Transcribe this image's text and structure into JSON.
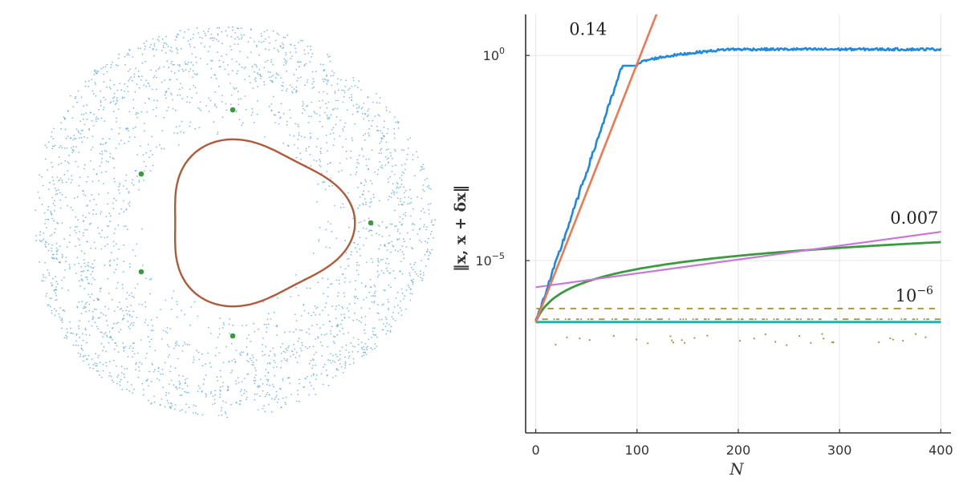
{
  "colors": {
    "scatter": "#5aa8e0",
    "chaotic": "#1e88e5",
    "fit_fast": "#f07850",
    "regular": "#3a9a40",
    "fit_slow": "#c878d8",
    "periodic": "#a89440",
    "fixed": "#20b2b0",
    "closed_orbit": "#b05a3a",
    "axis": "#333333",
    "grid": "#e6e6e6"
  },
  "chart_data": [
    {
      "type": "scatter",
      "title": "",
      "series": [
        {
          "kind": "chaotic-sea",
          "count": 2600,
          "radius_range": [
            0.42,
            1.0
          ]
        },
        {
          "kind": "closed-orbit"
        },
        {
          "kind": "periodic-points",
          "count": 5
        }
      ]
    },
    {
      "type": "line",
      "title": "",
      "xlabel": "N",
      "ylabel": "‖x, x + δx‖",
      "xlim": [
        -10,
        410
      ],
      "xticks": [
        0,
        100,
        200,
        300,
        400
      ],
      "yscale": "log",
      "ylim_exp": [
        -9.2,
        1.0
      ],
      "yticks": [
        {
          "base": "10",
          "exp": "0",
          "value": 0
        },
        {
          "base": "10",
          "exp": "−5",
          "value": -5
        }
      ],
      "grid": true,
      "annotations": [
        {
          "text": "0.14",
          "x": 33,
          "y_exp": 0.5,
          "kind": "plain"
        },
        {
          "text": "0.007",
          "x": 350,
          "y_exp": -4.1,
          "kind": "plain"
        },
        {
          "text": "10",
          "sup": "−6",
          "x": 355,
          "y_exp": -6.0,
          "kind": "power"
        }
      ],
      "series": [
        {
          "name": "",
          "role": "chaotic",
          "start_exp": -6.5,
          "slope_exp_per_N": 0.073,
          "saturate_N": 100,
          "saturate_exp": -0.25,
          "end_exp": 0.15
        },
        {
          "name": "",
          "role": "fit_fast",
          "x": [
            0,
            120
          ],
          "y_exp": [
            -6.5,
            1.05
          ]
        },
        {
          "name": "",
          "role": "regular",
          "x_range": [
            0,
            400
          ],
          "start_exp": -6.5,
          "end_exp": -4.55
        },
        {
          "name": "",
          "role": "fit_slow",
          "x": [
            0,
            400
          ],
          "y_exp": [
            -5.65,
            -4.3
          ]
        },
        {
          "name": "",
          "role": "periodic",
          "x_range": [
            0,
            400
          ],
          "center_exp": -6.35,
          "amplitude_exp": 0.2
        },
        {
          "name": "",
          "role": "fixed",
          "x": [
            0,
            400
          ],
          "y_exp": [
            -6.5,
            -6.5
          ]
        }
      ]
    }
  ]
}
